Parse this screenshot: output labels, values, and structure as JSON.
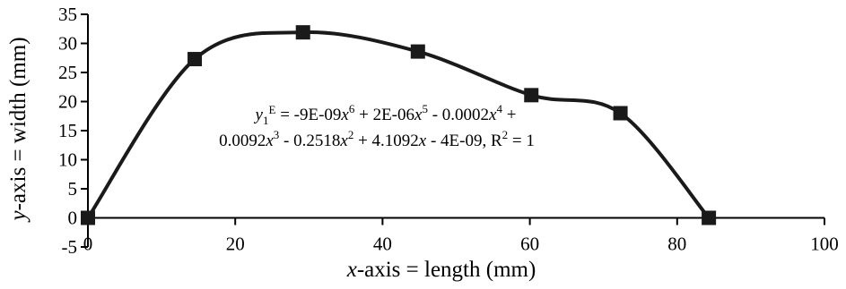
{
  "chart_data": {
    "type": "line",
    "title": "",
    "xlabel": {
      "var": "x",
      "rest": "-axis = length (mm)"
    },
    "ylabel": {
      "var": "y",
      "rest": "-axis = width (mm)"
    },
    "xlim": [
      0,
      100
    ],
    "ylim": [
      -5,
      35
    ],
    "xticks": [
      0,
      20,
      40,
      60,
      80,
      100
    ],
    "yticks": [
      -5,
      0,
      5,
      10,
      15,
      20,
      25,
      30,
      35
    ],
    "grid": false,
    "series": [
      {
        "markers": "square",
        "color": "#1a1a1a",
        "x": [
          0,
          14.5,
          29.2,
          44.8,
          60.2,
          72.3,
          84.3
        ],
        "y": [
          0,
          27.3,
          31.9,
          28.6,
          21.1,
          18.0,
          0
        ]
      }
    ],
    "equation": {
      "line1": {
        "lhs_var": "y",
        "lhs_sub": "1",
        "lhs_sup": "E",
        "terms": [
          {
            "coef": " = -9E-09",
            "var": "x",
            "exp": "6"
          },
          {
            "coef": " + 2E-06",
            "var": "x",
            "exp": "5"
          },
          {
            "coef": " - 0.0002",
            "var": "x",
            "exp": "4"
          },
          {
            "coef": " +",
            "var": "",
            "exp": ""
          }
        ]
      },
      "line2": {
        "terms": [
          {
            "coef": "0.0092",
            "var": "x",
            "exp": "3"
          },
          {
            "coef": " - 0.2518",
            "var": "x",
            "exp": "2"
          },
          {
            "coef": " + 4.1092",
            "var": "x",
            "exp": ""
          },
          {
            "coef": " - 4E-09, R",
            "var": "",
            "exp": "2"
          },
          {
            "coef": " = 1",
            "var": "",
            "exp": ""
          }
        ]
      }
    }
  }
}
